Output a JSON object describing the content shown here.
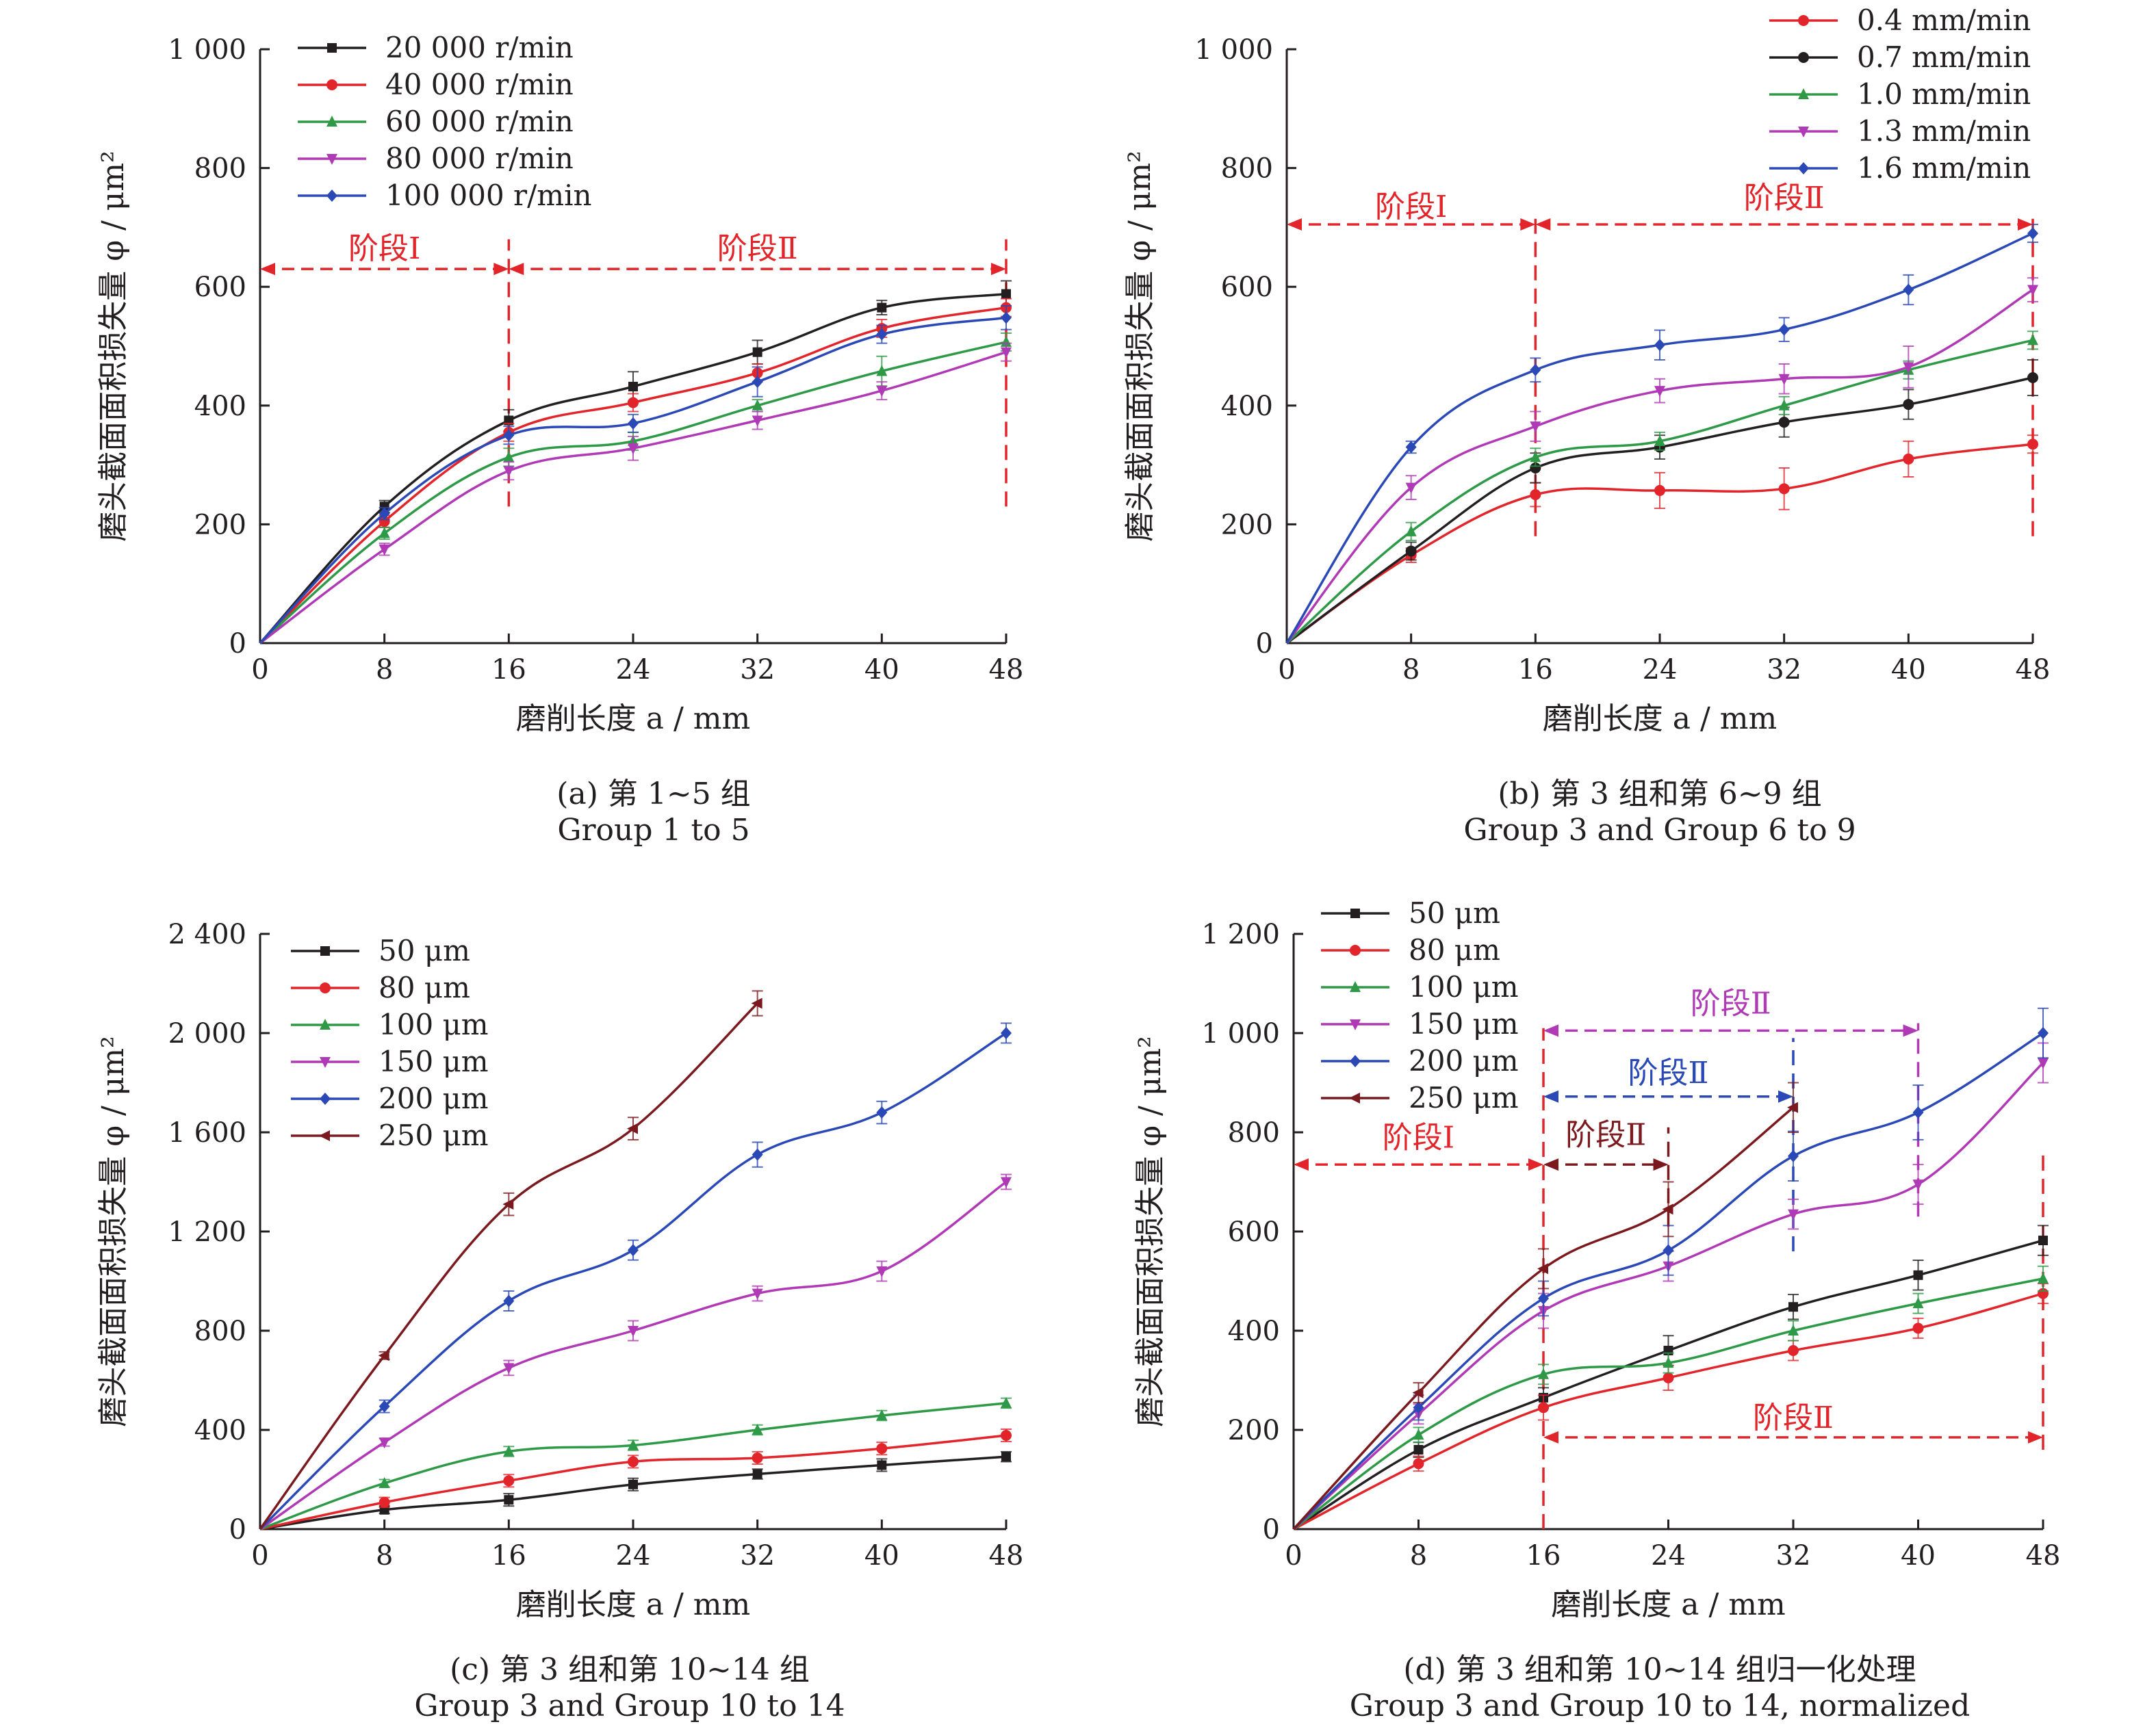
{
  "chart_data": [
    {
      "type": "line",
      "caption_cn": "(a) 第 1~5 组",
      "caption_en": "Group 1 to 5",
      "xlabel": "磨削长度 a / mm",
      "ylabel": "磨头截面面积损失量 φ / μm²",
      "x": [
        0,
        8,
        16,
        24,
        32,
        40,
        48
      ],
      "x_ticks": [
        "0",
        "8",
        "16",
        "24",
        "32",
        "40",
        "48"
      ],
      "xlim": [
        0,
        48
      ],
      "ylim": [
        0,
        1000
      ],
      "y_ticks": [
        {
          "v": 0,
          "label": "0"
        },
        {
          "v": 200,
          "label": "200"
        },
        {
          "v": 400,
          "label": "400"
        },
        {
          "v": 600,
          "label": "600"
        },
        {
          "v": 800,
          "label": "800"
        },
        {
          "v": 1000,
          "label": "1 000"
        }
      ],
      "legend_position": "top-left",
      "series": [
        {
          "name": "20 000 r/min",
          "color": "#231f20",
          "marker": "square",
          "values": [
            0,
            230,
            375,
            432,
            490,
            565,
            588
          ],
          "err": [
            0,
            10,
            18,
            25,
            20,
            12,
            22
          ]
        },
        {
          "name": "40 000 r/min",
          "color": "#e2252b",
          "marker": "circle",
          "values": [
            0,
            205,
            355,
            405,
            455,
            530,
            565
          ],
          "err": [
            0,
            10,
            15,
            15,
            15,
            15,
            15
          ]
        },
        {
          "name": "60 000 r/min",
          "color": "#2e9a47",
          "marker": "triangle-up",
          "values": [
            0,
            185,
            313,
            340,
            400,
            458,
            507
          ],
          "err": [
            0,
            10,
            15,
            15,
            10,
            25,
            15
          ]
        },
        {
          "name": "80 000 r/min",
          "color": "#b03ab5",
          "marker": "triangle-down",
          "values": [
            0,
            158,
            290,
            328,
            375,
            425,
            490
          ],
          "err": [
            0,
            10,
            15,
            20,
            15,
            15,
            15
          ]
        },
        {
          "name": "100 000 r/min",
          "color": "#2a49b6",
          "marker": "diamond",
          "values": [
            0,
            218,
            350,
            370,
            440,
            520,
            548
          ],
          "err": [
            0,
            10,
            15,
            15,
            25,
            15,
            20
          ]
        }
      ],
      "annotations": [
        {
          "text": "阶段Ⅰ",
          "color": "#e2252b",
          "x_from": 0,
          "x_to": 16,
          "y": 630,
          "label_y": 665
        },
        {
          "text": "阶段Ⅱ",
          "color": "#e2252b",
          "x_from": 16,
          "x_to": 48,
          "y": 630,
          "label_y": 665
        }
      ],
      "vlines": [
        {
          "x": 16,
          "y_from": 230,
          "y_to": 680,
          "color": "#e2252b"
        },
        {
          "x": 48,
          "y_from": 230,
          "y_to": 680,
          "color": "#e2252b"
        }
      ]
    },
    {
      "type": "line",
      "caption_cn": "(b) 第 3 组和第 6~9 组",
      "caption_en": "Group 3 and Group 6 to 9",
      "xlabel": "磨削长度 a / mm",
      "ylabel": "磨头截面面积损失量 φ / μm²",
      "x": [
        0,
        8,
        16,
        24,
        32,
        40,
        48
      ],
      "x_ticks": [
        "0",
        "8",
        "16",
        "24",
        "32",
        "40",
        "48"
      ],
      "xlim": [
        0,
        48
      ],
      "ylim": [
        0,
        1000
      ],
      "y_ticks": [
        {
          "v": 0,
          "label": "0"
        },
        {
          "v": 200,
          "label": "200"
        },
        {
          "v": 400,
          "label": "400"
        },
        {
          "v": 600,
          "label": "600"
        },
        {
          "v": 800,
          "label": "800"
        },
        {
          "v": 1000,
          "label": "1 000"
        }
      ],
      "legend_position": "top-right",
      "series": [
        {
          "name": "0.4 mm/min",
          "color": "#e2252b",
          "marker": "circle",
          "values": [
            0,
            148,
            250,
            257,
            260,
            310,
            335
          ],
          "err": [
            0,
            12,
            20,
            30,
            35,
            30,
            15
          ]
        },
        {
          "name": "0.7 mm/min",
          "color": "#231f20",
          "marker": "circle",
          "values": [
            0,
            155,
            295,
            330,
            372,
            402,
            447
          ],
          "err": [
            0,
            15,
            25,
            20,
            25,
            25,
            30
          ]
        },
        {
          "name": "1.0 mm/min",
          "color": "#2e9a47",
          "marker": "triangle-up",
          "values": [
            0,
            188,
            313,
            340,
            400,
            460,
            510
          ],
          "err": [
            0,
            15,
            15,
            15,
            15,
            15,
            15
          ]
        },
        {
          "name": "1.3 mm/min",
          "color": "#b03ab5",
          "marker": "triangle-down",
          "values": [
            0,
            262,
            365,
            425,
            445,
            465,
            595
          ],
          "err": [
            0,
            20,
            25,
            20,
            25,
            35,
            20
          ]
        },
        {
          "name": "1.6 mm/min",
          "color": "#2a49b6",
          "marker": "diamond",
          "values": [
            0,
            330,
            460,
            502,
            528,
            595,
            690
          ],
          "err": [
            0,
            10,
            20,
            25,
            20,
            25,
            15
          ]
        }
      ],
      "annotations": [
        {
          "text": "阶段Ⅰ",
          "color": "#e2252b",
          "x_from": 0,
          "x_to": 16,
          "y": 705,
          "label_y": 735
        },
        {
          "text": "阶段Ⅱ",
          "color": "#e2252b",
          "x_from": 16,
          "x_to": 48,
          "y": 705,
          "label_y": 750
        }
      ],
      "vlines": [
        {
          "x": 16,
          "y_from": 180,
          "y_to": 720,
          "color": "#e2252b"
        },
        {
          "x": 48,
          "y_from": 180,
          "y_to": 720,
          "color": "#e2252b"
        }
      ]
    },
    {
      "type": "line",
      "caption_cn": "(c) 第 3 组和第 10~14 组",
      "caption_en": "Group 3 and Group 10 to 14",
      "xlabel": "磨削长度 a / mm",
      "ylabel": "磨头截面面积损失量 φ / μm²",
      "x": [
        0,
        8,
        16,
        24,
        32,
        40,
        48
      ],
      "x_ticks": [
        "0",
        "8",
        "16",
        "24",
        "32",
        "40",
        "48"
      ],
      "xlim": [
        0,
        48
      ],
      "ylim": [
        0,
        2400
      ],
      "y_ticks": [
        {
          "v": 0,
          "label": "0"
        },
        {
          "v": 400,
          "label": "400"
        },
        {
          "v": 800,
          "label": "800"
        },
        {
          "v": 1200,
          "label": "1 200"
        },
        {
          "v": 1600,
          "label": "1 600"
        },
        {
          "v": 2000,
          "label": "2 000"
        },
        {
          "v": 2400,
          "label": "2 400"
        }
      ],
      "legend_position": "top-left",
      "series": [
        {
          "name": "50 μm",
          "color": "#231f20",
          "marker": "square",
          "values": [
            0,
            78,
            118,
            180,
            222,
            258,
            292
          ],
          "err": [
            0,
            15,
            25,
            25,
            20,
            25,
            20
          ]
        },
        {
          "name": "80 μm",
          "color": "#e2252b",
          "marker": "circle",
          "values": [
            0,
            108,
            195,
            272,
            287,
            325,
            378
          ],
          "err": [
            0,
            20,
            25,
            25,
            25,
            25,
            25
          ]
        },
        {
          "name": "100 μm",
          "color": "#2e9a47",
          "marker": "triangle-up",
          "values": [
            0,
            185,
            313,
            338,
            400,
            458,
            508
          ],
          "err": [
            0,
            15,
            20,
            20,
            20,
            20,
            20
          ]
        },
        {
          "name": "150 μm",
          "color": "#b03ab5",
          "marker": "triangle-down",
          "values": [
            0,
            350,
            650,
            800,
            950,
            1040,
            1400
          ],
          "err": [
            0,
            15,
            30,
            40,
            30,
            40,
            30
          ]
        },
        {
          "name": "200 μm",
          "color": "#2a49b6",
          "marker": "diamond",
          "values": [
            0,
            495,
            920,
            1125,
            1510,
            1680,
            2000
          ],
          "err": [
            0,
            25,
            40,
            40,
            50,
            45,
            40
          ]
        },
        {
          "name": "250 μm",
          "color": "#7b1a1e",
          "marker": "triangle-left",
          "values": [
            0,
            700,
            1310,
            1615,
            2120,
            null,
            null
          ],
          "err": [
            0,
            15,
            45,
            45,
            50,
            0,
            0
          ]
        }
      ]
    },
    {
      "type": "line",
      "caption_cn": "(d) 第 3 组和第 10~14 组归一化处理",
      "caption_en": "Group 3 and Group 10 to 14, normalized",
      "xlabel": "磨削长度 a / mm",
      "ylabel": "磨头截面面积损失量 φ / μm²",
      "x": [
        0,
        8,
        16,
        24,
        32,
        40,
        48
      ],
      "x_ticks": [
        "0",
        "8",
        "16",
        "24",
        "32",
        "40",
        "48"
      ],
      "xlim": [
        0,
        48
      ],
      "ylim": [
        0,
        1200
      ],
      "y_ticks": [
        {
          "v": 0,
          "label": "0"
        },
        {
          "v": 200,
          "label": "200"
        },
        {
          "v": 400,
          "label": "400"
        },
        {
          "v": 600,
          "label": "600"
        },
        {
          "v": 800,
          "label": "800"
        },
        {
          "v": 1000,
          "label": "1 000"
        },
        {
          "v": 1200,
          "label": "1 200"
        }
      ],
      "legend_position": "top-left",
      "series": [
        {
          "name": "50 μm",
          "color": "#231f20",
          "marker": "square",
          "values": [
            0,
            160,
            265,
            360,
            448,
            512,
            582
          ],
          "err": [
            0,
            15,
            20,
            30,
            25,
            30,
            30
          ]
        },
        {
          "name": "80 μm",
          "color": "#e2252b",
          "marker": "circle",
          "values": [
            0,
            132,
            245,
            305,
            360,
            405,
            475
          ],
          "err": [
            0,
            15,
            25,
            25,
            20,
            20,
            20
          ]
        },
        {
          "name": "100 μm",
          "color": "#2e9a47",
          "marker": "triangle-up",
          "values": [
            0,
            190,
            312,
            335,
            400,
            455,
            505
          ],
          "err": [
            0,
            15,
            20,
            20,
            20,
            20,
            25
          ]
        },
        {
          "name": "150 μm",
          "color": "#b03ab5",
          "marker": "triangle-down",
          "values": [
            0,
            232,
            440,
            530,
            635,
            695,
            940
          ],
          "err": [
            0,
            20,
            35,
            30,
            30,
            40,
            40
          ]
        },
        {
          "name": "200 μm",
          "color": "#2a49b6",
          "marker": "diamond",
          "values": [
            0,
            245,
            465,
            562,
            752,
            840,
            1000
          ],
          "err": [
            0,
            25,
            35,
            50,
            50,
            55,
            50
          ]
        },
        {
          "name": "250 μm",
          "color": "#7b1a1e",
          "marker": "triangle-left",
          "values": [
            0,
            275,
            525,
            645,
            850,
            null,
            null
          ],
          "err": [
            0,
            20,
            40,
            55,
            50,
            0,
            0
          ]
        }
      ],
      "annotations": [
        {
          "text": "阶段Ⅰ",
          "color": "#e2252b",
          "x_from": 0,
          "x_to": 16,
          "y": 735,
          "label_y": 790
        },
        {
          "text": "阶段Ⅱ",
          "color": "#7b1a1e",
          "x_from": 16,
          "x_to": 24,
          "y": 735,
          "label_y": 795
        },
        {
          "text": "阶段Ⅱ",
          "color": "#2a49b6",
          "x_from": 16,
          "x_to": 32,
          "y": 872,
          "label_y": 920
        },
        {
          "text": "阶段Ⅱ",
          "color": "#b03ab5",
          "x_from": 16,
          "x_to": 40,
          "y": 1005,
          "label_y": 1060
        },
        {
          "text": "阶段Ⅱ",
          "color": "#e2252b",
          "x_from": 16,
          "x_to": 48,
          "y": 185,
          "label_y": 225
        }
      ],
      "vlines": [
        {
          "x": 16,
          "y_from": 0,
          "y_to": 1010,
          "color": "#e2252b"
        },
        {
          "x": 24,
          "y_from": 610,
          "y_to": 810,
          "color": "#7b1a1e"
        },
        {
          "x": 32,
          "y_from": 560,
          "y_to": 990,
          "color": "#2a49b6"
        },
        {
          "x": 40,
          "y_from": 630,
          "y_to": 1020,
          "color": "#b03ab5"
        },
        {
          "x": 48,
          "y_from": 160,
          "y_to": 760,
          "color": "#e2252b"
        }
      ]
    }
  ]
}
